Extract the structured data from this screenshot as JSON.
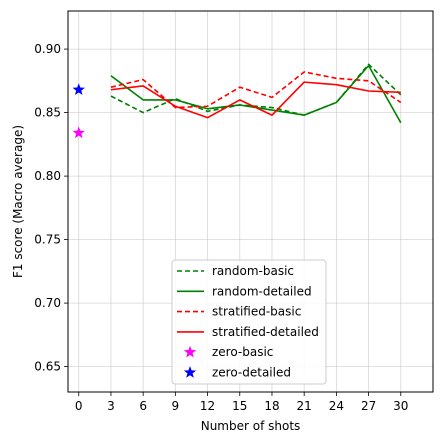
{
  "chart_data": {
    "type": "line",
    "xlabel": "Number of shots",
    "ylabel": "F1 score (Macro average)",
    "xlim": [
      -1,
      33
    ],
    "ylim": [
      0.63,
      0.93
    ],
    "xticks": [
      0,
      3,
      6,
      9,
      12,
      15,
      18,
      21,
      24,
      27,
      30
    ],
    "xtick_labels": [
      "0",
      "3",
      "6",
      "9",
      "12",
      "15",
      "18",
      "21",
      "24",
      "27",
      "30"
    ],
    "yticks": [
      0.65,
      0.7,
      0.75,
      0.8,
      0.85,
      0.9
    ],
    "ytick_labels": [
      "0.65",
      "0.70",
      "0.75",
      "0.80",
      "0.85",
      "0.90"
    ],
    "grid": true,
    "legend_position": "lower-center",
    "series": [
      {
        "name": "random-basic",
        "style": "dashed",
        "color": "#008000",
        "x": [
          3,
          6,
          9,
          12,
          15,
          18,
          21,
          24,
          27,
          30
        ],
        "y": [
          0.863,
          0.85,
          0.861,
          0.851,
          0.856,
          0.854,
          0.848,
          0.858,
          0.888,
          0.864
        ]
      },
      {
        "name": "random-detailed",
        "style": "solid",
        "color": "#008000",
        "x": [
          3,
          6,
          9,
          12,
          15,
          18,
          21,
          24,
          27,
          30
        ],
        "y": [
          0.879,
          0.86,
          0.86,
          0.853,
          0.856,
          0.852,
          0.848,
          0.858,
          0.887,
          0.842
        ]
      },
      {
        "name": "stratified-basic",
        "style": "dashed",
        "color": "#ff0000",
        "x": [
          3,
          6,
          9,
          12,
          15,
          18,
          21,
          24,
          27,
          30
        ],
        "y": [
          0.87,
          0.876,
          0.854,
          0.855,
          0.87,
          0.862,
          0.882,
          0.877,
          0.875,
          0.858
        ]
      },
      {
        "name": "stratified-detailed",
        "style": "solid",
        "color": "#ff0000",
        "x": [
          3,
          6,
          9,
          12,
          15,
          18,
          21,
          24,
          27,
          30
        ],
        "y": [
          0.868,
          0.871,
          0.855,
          0.846,
          0.86,
          0.848,
          0.874,
          0.872,
          0.867,
          0.866
        ]
      },
      {
        "name": "zero-basic",
        "style": "star",
        "color": "#ff00ff",
        "x": [
          0
        ],
        "y": [
          0.834
        ]
      },
      {
        "name": "zero-detailed",
        "style": "star",
        "color": "#0000ff",
        "x": [
          0
        ],
        "y": [
          0.868
        ]
      }
    ]
  }
}
